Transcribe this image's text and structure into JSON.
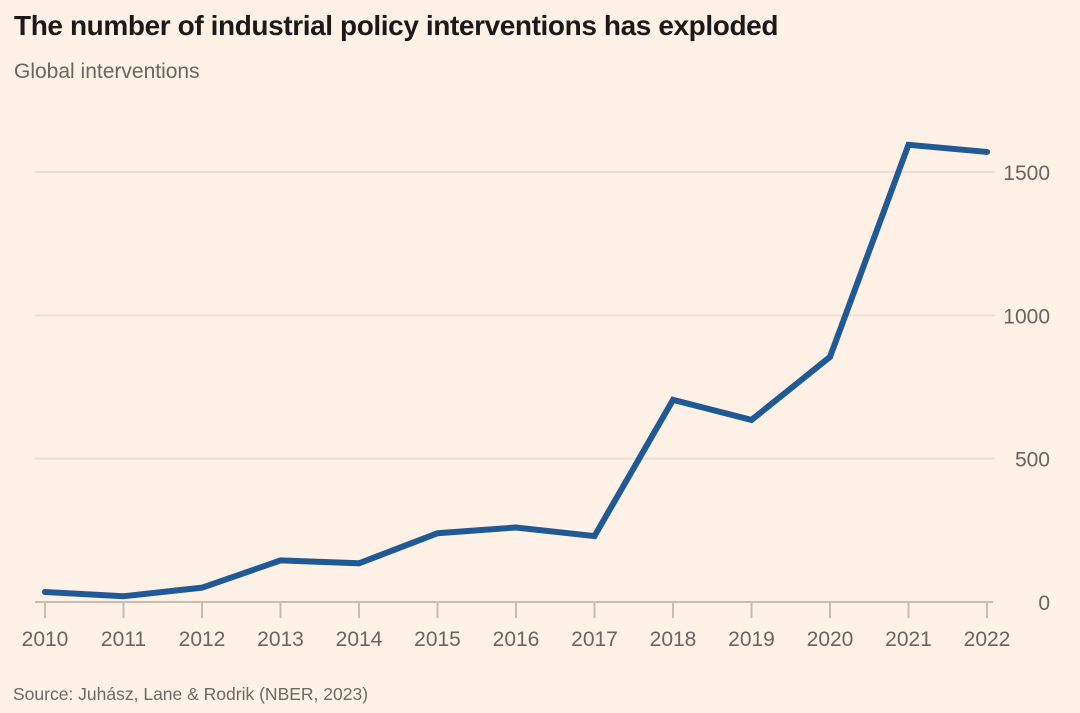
{
  "header": {
    "title": "The number of industrial policy interventions has exploded",
    "subtitle": "Global interventions"
  },
  "footer": {
    "source": "Source: Juhász, Lane & Rodrik (NBER, 2023)"
  },
  "colors": {
    "background": "#fff1e5",
    "line": "#1f5a96",
    "grid": "#eddfd1",
    "axis": "#c9bcb0",
    "title_text": "#1c1a18",
    "muted_text": "#6b6460"
  },
  "chart_data": {
    "type": "line",
    "title": "The number of industrial policy interventions has exploded",
    "subtitle": "Global interventions",
    "source": "Source: Juhász, Lane & Rodrik (NBER, 2023)",
    "categories": [
      "2010",
      "2011",
      "2012",
      "2013",
      "2014",
      "2015",
      "2016",
      "2017",
      "2018",
      "2019",
      "2020",
      "2021",
      "2022"
    ],
    "series": [
      {
        "name": "Global interventions",
        "values": [
          35,
          20,
          50,
          145,
          135,
          240,
          260,
          230,
          705,
          635,
          855,
          1595,
          1570
        ]
      }
    ],
    "xlabel": "",
    "ylabel": "",
    "yticks": [
      0,
      500,
      1000,
      1500
    ],
    "ylim": [
      0,
      1650
    ],
    "grid": true,
    "legend": "none",
    "ytick_side": "right"
  }
}
